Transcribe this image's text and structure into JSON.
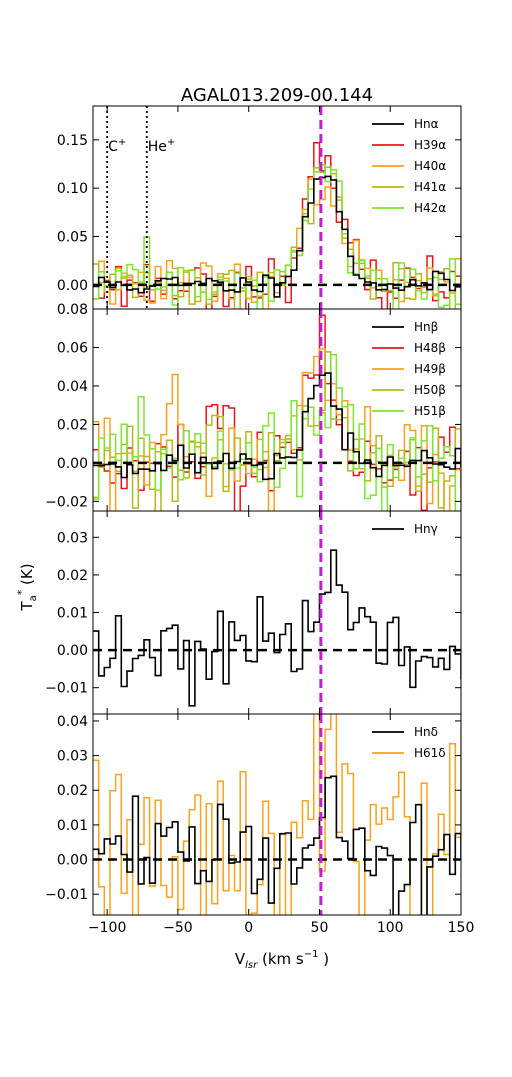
{
  "title": "AGAL013.209-00.144",
  "xlabel": "V$_{lsr}$ (km s$^{-1}$)",
  "xlabel_parts": {
    "main": "V",
    "sub": "lsr",
    "unit_open": " (km s",
    "sup": "−1",
    "unit_close": " )"
  },
  "ylabel_parts": {
    "main": "T",
    "sub": "a",
    "sup": "*",
    "unit": " (K)"
  },
  "colors": {
    "black": "#000000",
    "red": "#e8141c",
    "orange": "#f9a21b",
    "olive": "#b9b71a",
    "lime": "#7fe52e",
    "magenta": "#c31fd1"
  },
  "chart_data": {
    "type": "line",
    "step": true,
    "xlim": [
      -110,
      150
    ],
    "xticks": [
      -100,
      -50,
      0,
      50,
      100,
      150
    ],
    "xtick_labels": [
      "−100",
      "−50",
      "0",
      "50",
      "100",
      "150"
    ],
    "vline": {
      "x": 51,
      "color": "#c31fd1",
      "style": "dashed"
    },
    "markers": [
      {
        "x": -100,
        "label": "C$^+$",
        "text": "C",
        "sup": "+"
      },
      {
        "x": -72,
        "label": "He$^+$",
        "text": "He",
        "sup": "+"
      }
    ],
    "panels": [
      {
        "id": "alpha",
        "ylim": [
          -0.025,
          0.185
        ],
        "yticks": [
          0.0,
          0.05,
          0.1,
          0.15
        ],
        "ytick_labels": [
          "0.00",
          "0.05",
          "0.10",
          "0.15"
        ],
        "bottom_label": "0.08",
        "legend": [
          "Hnα",
          "H39α",
          "H40α",
          "H41α",
          "H42α"
        ],
        "series": [
          {
            "name": "Hnα",
            "color": "#000000",
            "noise": 0.006,
            "amp": 0.118,
            "center": 51,
            "sigma": 12,
            "seed": 11
          },
          {
            "name": "H39α",
            "color": "#e8141c",
            "noise": 0.013,
            "amp": 0.125,
            "center": 50,
            "sigma": 12,
            "seed": 23
          },
          {
            "name": "H40α",
            "color": "#f9a21b",
            "noise": 0.013,
            "amp": 0.115,
            "center": 51,
            "sigma": 12,
            "seed": 37
          },
          {
            "name": "H41α",
            "color": "#b9b71a",
            "noise": 0.013,
            "amp": 0.12,
            "center": 52,
            "sigma": 12,
            "seed": 41
          },
          {
            "name": "H42α",
            "color": "#7fe52e",
            "noise": 0.013,
            "amp": 0.12,
            "center": 50,
            "sigma": 13,
            "seed": 59
          }
        ]
      },
      {
        "id": "beta",
        "ylim": [
          -0.025,
          0.08
        ],
        "yticks": [
          -0.02,
          0.0,
          0.02,
          0.04,
          0.06
        ],
        "ytick_labels": [
          "−0.02",
          "0.00",
          "0.02",
          "0.04",
          "0.06"
        ],
        "legend": [
          "Hnβ",
          "H48β",
          "H49β",
          "H50β",
          "H51β"
        ],
        "series": [
          {
            "name": "Hnβ",
            "color": "#000000",
            "noise": 0.004,
            "amp": 0.045,
            "center": 50,
            "sigma": 10,
            "seed": 71
          },
          {
            "name": "H48β",
            "color": "#e8141c",
            "noise": 0.012,
            "amp": 0.055,
            "center": 48,
            "sigma": 10,
            "seed": 83
          },
          {
            "name": "H49β",
            "color": "#f9a21b",
            "noise": 0.015,
            "amp": 0.055,
            "center": 48,
            "sigma": 10,
            "seed": 97
          },
          {
            "name": "H50β",
            "color": "#b9b71a",
            "noise": 0.012,
            "amp": 0.035,
            "center": 52,
            "sigma": 10,
            "seed": 101
          },
          {
            "name": "H51β",
            "color": "#7fe52e",
            "noise": 0.012,
            "amp": 0.03,
            "center": 55,
            "sigma": 12,
            "seed": 113
          }
        ]
      },
      {
        "id": "gamma",
        "ylim": [
          -0.017,
          0.037
        ],
        "yticks": [
          -0.01,
          0.0,
          0.01,
          0.02,
          0.03
        ],
        "ytick_labels": [
          "−0.01",
          "0.00",
          "0.01",
          "0.02",
          "0.03"
        ],
        "legend": [
          "Hnγ"
        ],
        "series": [
          {
            "name": "Hnγ",
            "color": "#000000",
            "noise": 0.006,
            "amp": 0.015,
            "center": 58,
            "sigma": 12,
            "seed": 131
          }
        ]
      },
      {
        "id": "delta",
        "ylim": [
          -0.016,
          0.042
        ],
        "yticks": [
          -0.01,
          0.0,
          0.01,
          0.02,
          0.03,
          0.04
        ],
        "ytick_labels": [
          "−0.01",
          "0.00",
          "0.01",
          "0.02",
          "0.03",
          "0.04"
        ],
        "legend": [
          "Hnδ",
          "H61δ"
        ],
        "series": [
          {
            "name": "Hnδ",
            "color": "#000000",
            "noise": 0.007,
            "amp": 0.015,
            "center": 55,
            "sigma": 10,
            "seed": 149
          },
          {
            "name": "H61δ",
            "color": "#f9a21b",
            "noise": 0.02,
            "amp": 0.03,
            "center": 55,
            "sigma": 12,
            "seed": 163
          }
        ]
      }
    ]
  }
}
